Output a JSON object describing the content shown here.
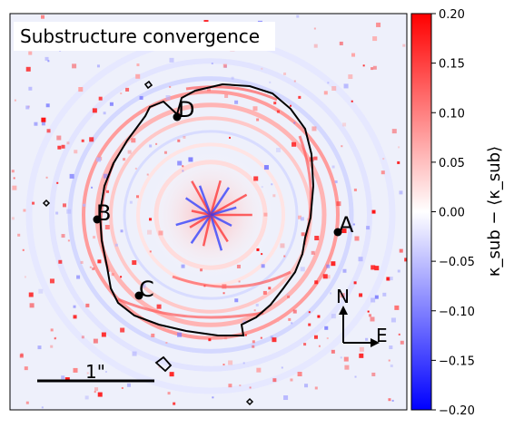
{
  "chart_data": {
    "type": "heatmap",
    "title": "Substructure convergence",
    "colorbar": {
      "label": "κ_sub − ⟨κ_sub⟩",
      "vmin": -0.2,
      "vmax": 0.2,
      "ticks": [
        "0.20",
        "0.15",
        "0.10",
        "0.05",
        "0.00",
        "−0.05",
        "−0.10",
        "−0.15",
        "−0.20"
      ],
      "colormap": "bwr",
      "colors": {
        "low": "#0000ff",
        "mid": "#ffffff",
        "high": "#ff0000"
      }
    },
    "images": [
      {
        "label": "A"
      },
      {
        "label": "B"
      },
      {
        "label": "C"
      },
      {
        "label": "D"
      }
    ],
    "scale_bar_label": "1\"",
    "compass": {
      "north": "N",
      "east": "E"
    },
    "critical_curve_color": "#000000"
  }
}
